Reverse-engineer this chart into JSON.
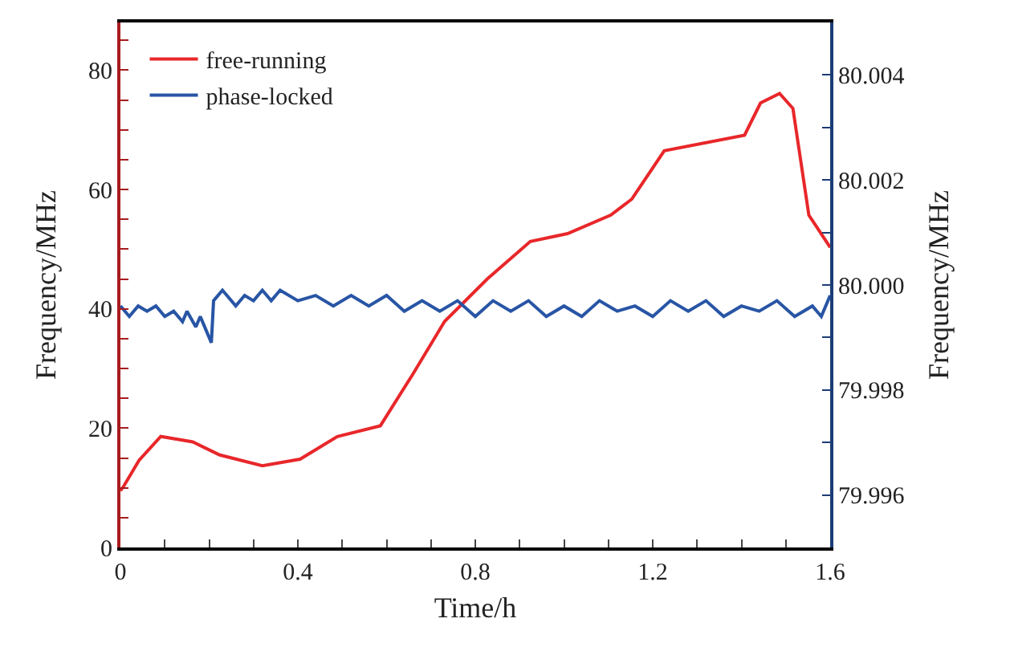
{
  "chart_data": {
    "type": "line",
    "xlabel": "Time/h",
    "ylabel": "Frequency/MHz",
    "y2label": "Frequency/MHz",
    "xlim": [
      0,
      1.6
    ],
    "xticks": [
      0,
      {
        "value": 0.1,
        "label": null
      },
      {
        "value": 0.2,
        "label": null
      },
      {
        "value": 0.3,
        "label": null
      },
      0.4,
      {
        "value": 0.5,
        "label": null
      },
      {
        "value": 0.6,
        "label": null
      },
      {
        "value": 0.7,
        "label": null
      },
      0.8,
      {
        "value": 0.9,
        "label": null
      },
      {
        "value": 1.0,
        "label": null
      },
      {
        "value": 1.1,
        "label": null
      },
      1.2,
      {
        "value": 1.3,
        "label": null
      },
      {
        "value": 1.4,
        "label": null
      },
      {
        "value": 1.5,
        "label": null
      },
      1.6
    ],
    "ylim": [
      0,
      88
    ],
    "yticks": [
      0,
      {
        "value": 5,
        "label": null
      },
      {
        "value": 10,
        "label": null
      },
      {
        "value": 15,
        "label": null
      },
      20,
      {
        "value": 25,
        "label": null
      },
      {
        "value": 30,
        "label": null
      },
      {
        "value": 35,
        "label": null
      },
      40,
      {
        "value": 45,
        "label": null
      },
      {
        "value": 50,
        "label": null
      },
      {
        "value": 55,
        "label": null
      },
      60,
      {
        "value": 65,
        "label": null
      },
      {
        "value": 70,
        "label": null
      },
      {
        "value": 75,
        "label": null
      },
      80,
      {
        "value": 85,
        "label": null
      }
    ],
    "y2lim": [
      79.995,
      80.005
    ],
    "y2ticks": [
      {
        "value": 79.996,
        "label": "79.996"
      },
      {
        "value": 79.997,
        "label": null
      },
      {
        "value": 79.998,
        "label": "79.998"
      },
      {
        "value": 79.999,
        "label": null
      },
      {
        "value": 80.0,
        "label": "80.000"
      },
      {
        "value": 80.001,
        "label": null
      },
      {
        "value": 80.002,
        "label": "80.002"
      },
      {
        "value": 80.003,
        "label": null
      },
      {
        "value": 80.004,
        "label": "80.004"
      }
    ],
    "legend": "top left",
    "marker": "none",
    "line_style": "solid",
    "series": [
      {
        "name": "free-running",
        "color": "#e8272a",
        "x": [
          0,
          0.006,
          0.042,
          0.091,
          0.163,
          0.224,
          0.32,
          0.405,
          0.489,
          0.586,
          0.658,
          0.731,
          0.827,
          0.924,
          1.008,
          1.105,
          1.153,
          1.226,
          1.407,
          1.443,
          1.486,
          1.516,
          1.552,
          1.6
        ],
        "values": [
          9.5,
          10.1,
          14.6,
          18.6,
          17.7,
          15.5,
          13.7,
          14.8,
          18.6,
          20.4,
          28.9,
          37.9,
          45.0,
          51.3,
          52.6,
          55.7,
          58.4,
          66.5,
          69.1,
          74.5,
          76.1,
          73.6,
          55.7,
          50.3
        ]
      },
      {
        "name": "phase-locked",
        "color": "#2855a5",
        "axis": "y2",
        "x": [
          0,
          0.02,
          0.04,
          0.06,
          0.08,
          0.1,
          0.12,
          0.14,
          0.15,
          0.17,
          0.18,
          0.195,
          0.205,
          0.21,
          0.23,
          0.26,
          0.28,
          0.3,
          0.32,
          0.34,
          0.36,
          0.4,
          0.44,
          0.48,
          0.52,
          0.56,
          0.6,
          0.64,
          0.68,
          0.72,
          0.76,
          0.8,
          0.84,
          0.88,
          0.92,
          0.96,
          1.0,
          1.04,
          1.08,
          1.12,
          1.16,
          1.2,
          1.24,
          1.28,
          1.32,
          1.36,
          1.4,
          1.44,
          1.48,
          1.52,
          1.56,
          1.58,
          1.6
        ],
        "values": [
          79.9996,
          79.9994,
          79.9996,
          79.9995,
          79.9996,
          79.9994,
          79.9995,
          79.9993,
          79.9995,
          79.9992,
          79.9994,
          79.9991,
          79.9989,
          79.9997,
          79.9999,
          79.9996,
          79.9998,
          79.9997,
          79.9999,
          79.9997,
          79.9999,
          79.9997,
          79.9998,
          79.9996,
          79.9998,
          79.9996,
          79.9998,
          79.9995,
          79.9997,
          79.9995,
          79.9997,
          79.9994,
          79.9997,
          79.9995,
          79.9997,
          79.9994,
          79.9996,
          79.9994,
          79.9997,
          79.9995,
          79.9996,
          79.9994,
          79.9997,
          79.9995,
          79.9997,
          79.9994,
          79.9996,
          79.9995,
          79.9997,
          79.9994,
          79.9996,
          79.9994,
          79.9998
        ]
      }
    ]
  }
}
